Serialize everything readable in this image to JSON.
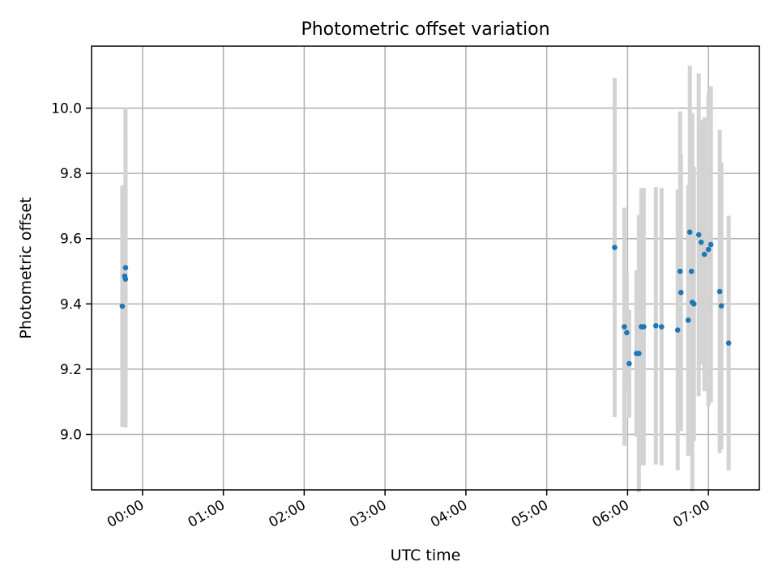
{
  "chart_data": {
    "type": "scatter",
    "title": "Photometric offset variation",
    "xlabel": "UTC time",
    "ylabel": "Photometric offset",
    "x_unit": "hours (UTC)",
    "xlim": [
      -0.63,
      7.63
    ],
    "ylim": [
      8.83,
      10.19
    ],
    "x_ticks": [
      0,
      1,
      2,
      3,
      4,
      5,
      6,
      7
    ],
    "x_tick_labels": [
      "00:00",
      "01:00",
      "02:00",
      "03:00",
      "04:00",
      "05:00",
      "06:00",
      "07:00"
    ],
    "y_ticks": [
      9.0,
      9.2,
      9.4,
      9.6,
      9.8,
      10.0
    ],
    "y_tick_labels": [
      "9.0",
      "9.2",
      "9.4",
      "9.6",
      "9.8",
      "10.0"
    ],
    "grid": true,
    "legend": "none",
    "colors": {
      "points": "#1f77b4",
      "errorbars": "#d3d3d3",
      "grid": "#b0b0b0"
    },
    "series": [
      {
        "x": [
          -0.25,
          -0.22,
          -0.21,
          -0.21,
          5.84,
          5.96,
          5.99,
          6.02,
          6.11,
          6.14,
          6.17,
          6.2,
          6.35,
          6.42,
          6.62,
          6.65,
          6.66,
          6.75,
          6.77,
          6.79,
          6.8,
          6.82,
          6.88,
          6.91,
          6.95,
          7.0,
          7.03,
          7.14,
          7.16,
          7.25
        ],
        "y": [
          9.393,
          9.485,
          9.476,
          9.511,
          9.573,
          9.33,
          9.312,
          9.217,
          9.248,
          9.248,
          9.33,
          9.33,
          9.333,
          9.33,
          9.32,
          9.5,
          9.435,
          9.35,
          9.62,
          9.5,
          9.405,
          9.4,
          9.612,
          9.589,
          9.552,
          9.567,
          9.582,
          9.438,
          9.394,
          9.28
        ],
        "yerr": [
          0.37,
          0.28,
          0.44,
          0.49,
          0.52,
          0.365,
          0.18,
          0.165,
          0.255,
          0.425,
          0.425,
          0.425,
          0.425,
          0.425,
          0.43,
          0.49,
          0.425,
          0.415,
          0.51,
          0.485,
          0.58,
          0.42,
          0.495,
          0.375,
          0.42,
          0.48,
          0.485,
          0.495,
          0.44,
          0.39
        ]
      }
    ]
  }
}
